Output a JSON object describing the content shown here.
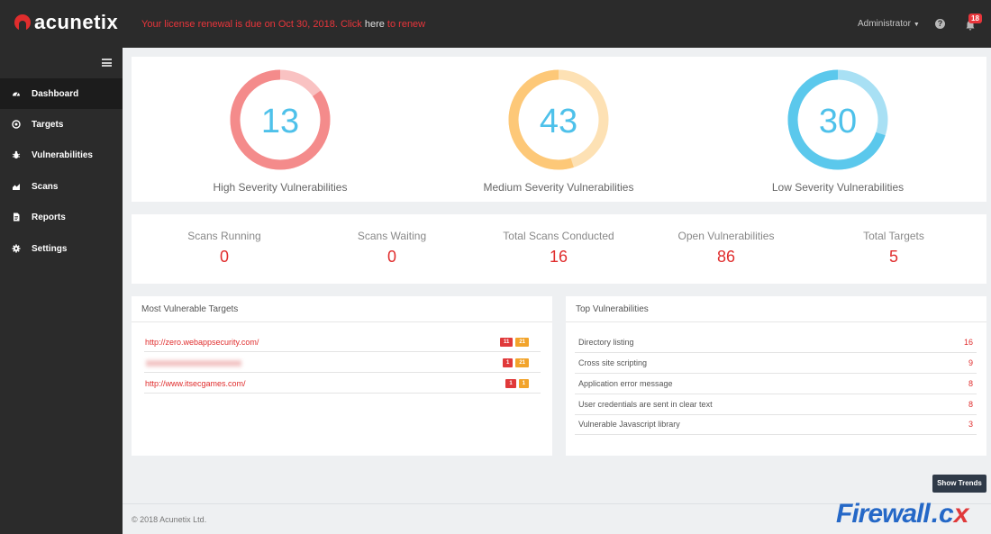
{
  "app": {
    "logo_text": "acunetix",
    "license": {
      "text": "Your license renewal is due on Oct 30, 2018. Click ",
      "link_here": "here",
      "link_tail": " to renew"
    },
    "user_menu": "Administrator",
    "help": "?",
    "notifications_count": "18"
  },
  "sidebar": {
    "items": [
      {
        "label": "Dashboard",
        "icon": "dashboard-icon",
        "active": true
      },
      {
        "label": "Targets",
        "icon": "target-icon"
      },
      {
        "label": "Vulnerabilities",
        "icon": "bug-icon"
      },
      {
        "label": "Scans",
        "icon": "scans-chart-icon"
      },
      {
        "label": "Reports",
        "icon": "report-icon"
      },
      {
        "label": "Settings",
        "icon": "gear-icon"
      }
    ]
  },
  "severity": [
    {
      "count": "13",
      "label": "High Severity Vulnerabilities",
      "color": "#f48b8b",
      "light": "#f9c2c2",
      "fraction": 0.85
    },
    {
      "count": "43",
      "label": "Medium Severity Vulnerabilities",
      "color": "#fdc878",
      "light": "#fde1b4",
      "fraction": 0.55
    },
    {
      "count": "30",
      "label": "Low Severity Vulnerabilities",
      "color": "#5bc8ec",
      "light": "#a8e0f4",
      "fraction": 0.7
    }
  ],
  "stats": [
    {
      "title": "Scans Running",
      "value": "0"
    },
    {
      "title": "Scans Waiting",
      "value": "0"
    },
    {
      "title": "Total Scans Conducted",
      "value": "16"
    },
    {
      "title": "Open Vulnerabilities",
      "value": "86"
    },
    {
      "title": "Total Targets",
      "value": "5"
    }
  ],
  "most_vulnerable": {
    "title": "Most Vulnerable Targets",
    "rows": [
      {
        "url": "http://zero.webappsecurity.com/",
        "high": "11",
        "medium": "21"
      },
      {
        "url": "",
        "blurred": true,
        "high": "1",
        "medium": "21"
      },
      {
        "url": "http://www.itsecgames.com/",
        "high": "1",
        "medium": "1"
      }
    ]
  },
  "top_vulnerabilities": {
    "title": "Top Vulnerabilities",
    "rows": [
      {
        "name": "Directory listing",
        "count": "16"
      },
      {
        "name": "Cross site scripting",
        "count": "9"
      },
      {
        "name": "Application error message",
        "count": "8"
      },
      {
        "name": "User credentials are sent in clear text",
        "count": "8"
      },
      {
        "name": "Vulnerable Javascript library",
        "count": "3"
      }
    ]
  },
  "show_trends": "Show Trends",
  "footer": "© 2018 Acunetix Ltd.",
  "watermark": {
    "main": "Firewall",
    "dot": ".c",
    "x": "x"
  },
  "colors": {
    "accent_red": "#e02d2d",
    "sidebar_bg": "#2b2b2b",
    "button_dark": "#2f3a48"
  }
}
